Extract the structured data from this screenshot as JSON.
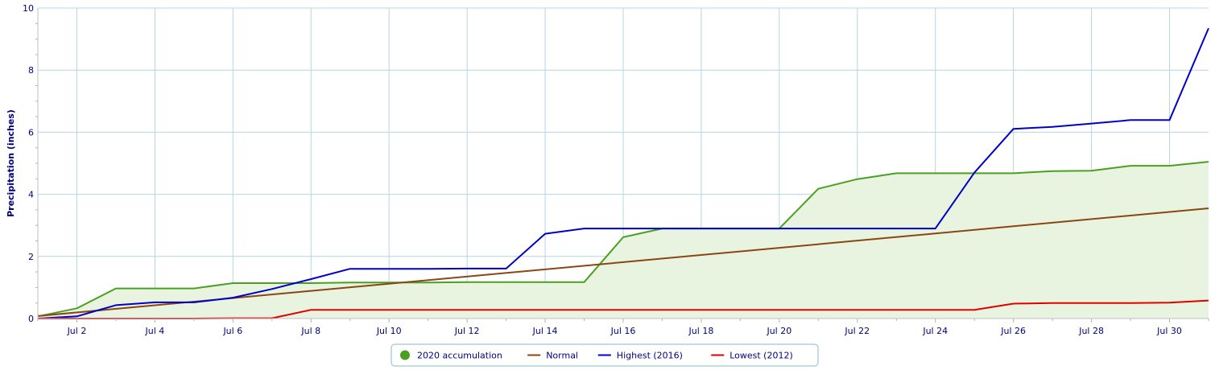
{
  "chart_data": {
    "type": "line",
    "ylabel": "Precipitation (inches)",
    "ylim": [
      0,
      10
    ],
    "y_ticks": [
      0,
      2,
      4,
      6,
      8,
      10
    ],
    "x_domain": [
      1,
      31
    ],
    "x_ticks": [
      {
        "day": 2,
        "label": "Jul 2"
      },
      {
        "day": 4,
        "label": "Jul 4"
      },
      {
        "day": 6,
        "label": "Jul 6"
      },
      {
        "day": 8,
        "label": "Jul 8"
      },
      {
        "day": 10,
        "label": "Jul 10"
      },
      {
        "day": 12,
        "label": "Jul 12"
      },
      {
        "day": 14,
        "label": "Jul 14"
      },
      {
        "day": 16,
        "label": "Jul 16"
      },
      {
        "day": 18,
        "label": "Jul 18"
      },
      {
        "day": 20,
        "label": "Jul 20"
      },
      {
        "day": 22,
        "label": "Jul 22"
      },
      {
        "day": 24,
        "label": "Jul 24"
      },
      {
        "day": 26,
        "label": "Jul 26"
      },
      {
        "day": 28,
        "label": "Jul 28"
      },
      {
        "day": 30,
        "label": "Jul 30"
      }
    ],
    "grid": true,
    "legend_position": "bottom-center",
    "series": [
      {
        "name": "2020 accumulation",
        "color": "#4aa020",
        "fill": "#e8f4e0",
        "area": true,
        "marker": "circle",
        "x": [
          1,
          2,
          3,
          4,
          5,
          6,
          7,
          8,
          9,
          10,
          11,
          12,
          13,
          14,
          15,
          16,
          17,
          18,
          19,
          20,
          21,
          22,
          23,
          24,
          25,
          26,
          27,
          28,
          29,
          30,
          31
        ],
        "values": [
          0.07,
          0.33,
          0.97,
          0.97,
          0.97,
          1.14,
          1.14,
          1.14,
          1.16,
          1.16,
          1.16,
          1.17,
          1.17,
          1.17,
          1.17,
          2.62,
          2.9,
          2.9,
          2.9,
          2.9,
          4.18,
          4.49,
          4.68,
          4.68,
          4.68,
          4.68,
          4.75,
          4.76,
          4.92,
          4.92,
          5.05
        ]
      },
      {
        "name": "Normal",
        "color": "#8b4513",
        "area": false,
        "marker": "line",
        "x": [
          1,
          31
        ],
        "values": [
          0.08,
          3.55
        ]
      },
      {
        "name": "Highest (2016)",
        "color": "#0000cc",
        "area": false,
        "marker": "line",
        "x": [
          1,
          2,
          3,
          4,
          5,
          6,
          7,
          8,
          9,
          10,
          11,
          12,
          13,
          14,
          15,
          16,
          17,
          18,
          19,
          20,
          21,
          22,
          23,
          24,
          25,
          26,
          27,
          28,
          29,
          30,
          31
        ],
        "values": [
          0.0,
          0.07,
          0.43,
          0.52,
          0.52,
          0.67,
          0.95,
          1.27,
          1.6,
          1.6,
          1.6,
          1.61,
          1.61,
          2.73,
          2.9,
          2.9,
          2.9,
          2.9,
          2.9,
          2.9,
          2.9,
          2.9,
          2.9,
          2.9,
          4.7,
          6.11,
          6.17,
          6.28,
          6.39,
          6.39,
          9.35
        ]
      },
      {
        "name": "Lowest (2012)",
        "color": "#e00000",
        "area": false,
        "marker": "line",
        "x": [
          1,
          2,
          3,
          4,
          5,
          6,
          7,
          8,
          9,
          10,
          11,
          12,
          13,
          14,
          15,
          16,
          17,
          18,
          19,
          20,
          21,
          22,
          23,
          24,
          25,
          26,
          27,
          28,
          29,
          30,
          31
        ],
        "values": [
          0.0,
          0.0,
          0.0,
          0.0,
          0.0,
          0.01,
          0.01,
          0.28,
          0.28,
          0.28,
          0.28,
          0.28,
          0.28,
          0.28,
          0.28,
          0.28,
          0.28,
          0.28,
          0.28,
          0.28,
          0.28,
          0.28,
          0.28,
          0.28,
          0.28,
          0.48,
          0.5,
          0.5,
          0.5,
          0.51,
          0.58
        ]
      }
    ]
  }
}
